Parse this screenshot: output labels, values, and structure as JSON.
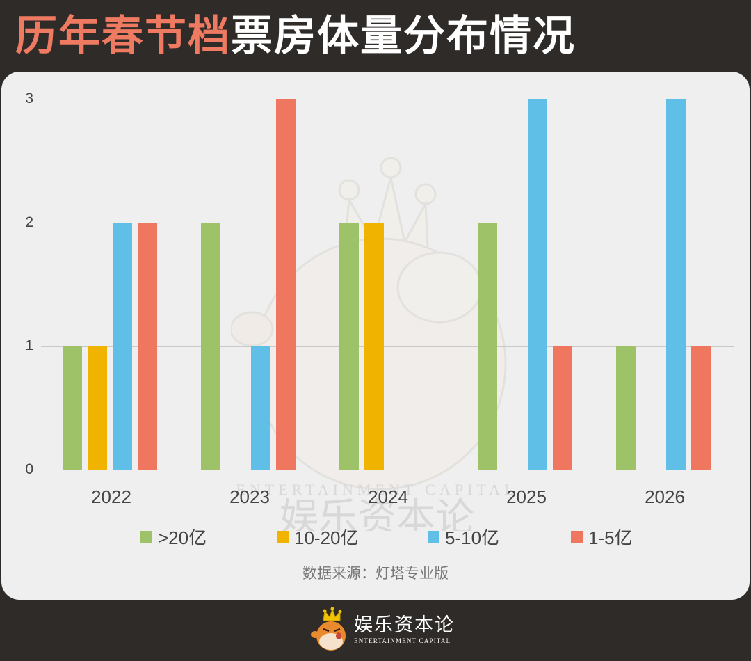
{
  "header": {
    "title_highlight": "历年春节档",
    "title_rest": "票房体量分布情况",
    "highlight_color": "#ef7a62"
  },
  "chart_data": {
    "type": "bar",
    "title": "历年春节档票房体量分布情况",
    "xlabel": "",
    "ylabel": "",
    "categories": [
      "2022",
      "2023",
      "2024",
      "2025",
      "2026"
    ],
    "series": [
      {
        "name": ">20亿",
        "color": "#9dc267",
        "values": [
          1,
          2,
          2,
          2,
          1
        ]
      },
      {
        "name": "10-20亿",
        "color": "#f0b400",
        "values": [
          1,
          0,
          2,
          0,
          0
        ]
      },
      {
        "name": "5-10亿",
        "color": "#5fbfe6",
        "values": [
          2,
          1,
          0,
          3,
          3
        ]
      },
      {
        "name": "1-5亿",
        "color": "#ef7760",
        "values": [
          2,
          3,
          0,
          1,
          1
        ]
      }
    ],
    "ylim": [
      0,
      3
    ],
    "yticks": [
      "0",
      "1",
      "2",
      "3"
    ],
    "grid": true,
    "legend_position": "bottom"
  },
  "legend": [
    {
      "label": ">20亿",
      "color": "#9dc267"
    },
    {
      "label": "10-20亿",
      "color": "#f0b400"
    },
    {
      "label": "5-10亿",
      "color": "#5fbfe6"
    },
    {
      "label": "1-5亿",
      "color": "#ef7760"
    }
  ],
  "source": "数据来源：灯塔专业版",
  "watermark": {
    "en": "ENTERTAINMENT CAPITAL",
    "cn": "娱乐资本论"
  },
  "footer": {
    "brand_cn": "娱乐资本论",
    "brand_en": "ENTERTAINMENT CAPITAL"
  }
}
